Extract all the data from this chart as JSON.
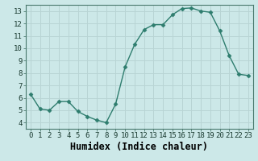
{
  "x": [
    0,
    1,
    2,
    3,
    4,
    5,
    6,
    7,
    8,
    9,
    10,
    11,
    12,
    13,
    14,
    15,
    16,
    17,
    18,
    19,
    20,
    21,
    22,
    23
  ],
  "y": [
    6.3,
    5.1,
    5.0,
    5.7,
    5.7,
    4.9,
    4.5,
    4.2,
    4.0,
    5.5,
    8.5,
    10.3,
    11.5,
    11.9,
    11.9,
    12.7,
    13.2,
    13.25,
    13.0,
    12.9,
    11.4,
    9.4,
    7.9,
    7.8
  ],
  "line_color": "#2e7d6e",
  "marker": "D",
  "marker_size": 2.5,
  "bg_color": "#cce8e8",
  "grid_color": "#b8d4d4",
  "xlabel": "Humidex (Indice chaleur)",
  "xlim": [
    -0.5,
    23.5
  ],
  "ylim": [
    3.5,
    13.5
  ],
  "yticks": [
    4,
    5,
    6,
    7,
    8,
    9,
    10,
    11,
    12,
    13
  ],
  "xtick_labels": [
    "0",
    "1",
    "2",
    "3",
    "4",
    "5",
    "6",
    "7",
    "8",
    "9",
    "10",
    "11",
    "12",
    "13",
    "14",
    "15",
    "16",
    "17",
    "18",
    "19",
    "20",
    "21",
    "22",
    "23"
  ],
  "tick_fontsize": 6.5,
  "xlabel_fontsize": 8.5
}
